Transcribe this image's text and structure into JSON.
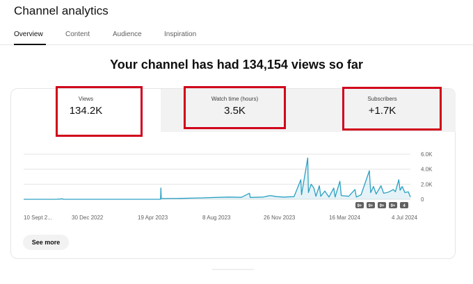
{
  "header": {
    "title": "Channel analytics"
  },
  "tabs": [
    {
      "label": "Overview",
      "active": true
    },
    {
      "label": "Content",
      "active": false
    },
    {
      "label": "Audience",
      "active": false
    },
    {
      "label": "Inspiration",
      "active": false
    }
  ],
  "summary": {
    "headline": "Your channel has had 134,154 views so far"
  },
  "metrics": [
    {
      "label": "Views",
      "value": "134.2K"
    },
    {
      "label": "Watch time (hours)",
      "value": "3.5K"
    },
    {
      "label": "Subscribers",
      "value": "+1.7K"
    }
  ],
  "colors": {
    "line": "#2ba0c2",
    "highlight": "#d0021b",
    "grid": "#e5e5e5",
    "axis_text": "#606060"
  },
  "chart_data": {
    "type": "area",
    "series": [
      {
        "values": [
          [
            0,
            0
          ],
          [
            48,
            0
          ],
          [
            57,
            60
          ],
          [
            58,
            0
          ],
          [
            200,
            0
          ],
          [
            200.5,
            1500
          ],
          [
            201,
            100
          ],
          [
            230,
            120
          ],
          [
            260,
            180
          ],
          [
            280,
            250
          ],
          [
            300,
            300
          ],
          [
            318,
            260
          ],
          [
            330,
            800
          ],
          [
            331,
            250
          ],
          [
            350,
            300
          ],
          [
            360,
            500
          ],
          [
            370,
            350
          ],
          [
            380,
            300
          ],
          [
            395,
            350
          ],
          [
            405,
            2600
          ],
          [
            406,
            600
          ],
          [
            415,
            5500
          ],
          [
            416,
            900
          ],
          [
            420,
            2000
          ],
          [
            424,
            1500
          ],
          [
            427,
            400
          ],
          [
            432,
            1800
          ],
          [
            434,
            400
          ],
          [
            440,
            1100
          ],
          [
            446,
            300
          ],
          [
            453,
            1500
          ],
          [
            455,
            300
          ],
          [
            462,
            2400
          ],
          [
            464,
            500
          ],
          [
            475,
            400
          ],
          [
            484,
            1300
          ],
          [
            486,
            300
          ],
          [
            493,
            600
          ],
          [
            505,
            3800
          ],
          [
            507,
            900
          ],
          [
            511,
            1700
          ],
          [
            515,
            700
          ],
          [
            522,
            1800
          ],
          [
            526,
            800
          ],
          [
            531,
            900
          ],
          [
            534,
            1000
          ],
          [
            540,
            1300
          ],
          [
            543,
            1000
          ],
          [
            548,
            2600
          ],
          [
            550,
            1200
          ],
          [
            553,
            1700
          ],
          [
            557,
            900
          ],
          [
            562,
            1000
          ],
          [
            565,
            300
          ]
        ]
      }
    ],
    "y_axis": {
      "ticks": [
        "6.0K",
        "4.0K",
        "2.0K",
        "0"
      ],
      "range": [
        0,
        6000
      ]
    },
    "x_axis": {
      "ticks": [
        "10 Sept 2...",
        "30 Dec 2022",
        "19 Apr 2023",
        "8 Aug 2023",
        "26 Nov 2023",
        "16 Mar 2024",
        "4 Jul 2024"
      ],
      "range": [
        0,
        565
      ]
    },
    "markers": [
      "9+",
      "9+",
      "9+",
      "9+",
      "4"
    ],
    "grid": true
  },
  "actions": {
    "see_more": "See more"
  }
}
